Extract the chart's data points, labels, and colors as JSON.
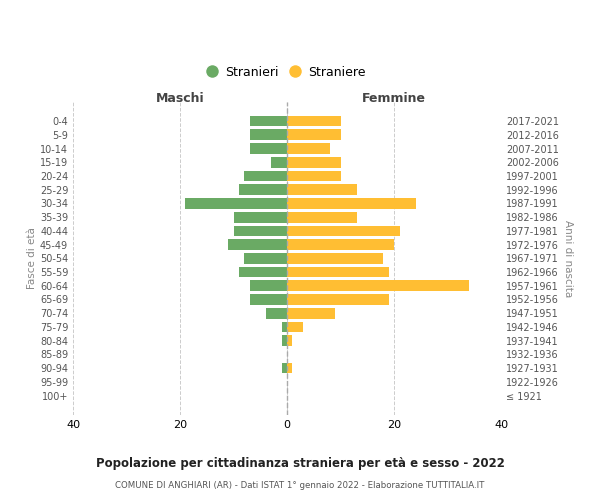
{
  "age_groups": [
    "0-4",
    "5-9",
    "10-14",
    "15-19",
    "20-24",
    "25-29",
    "30-34",
    "35-39",
    "40-44",
    "45-49",
    "50-54",
    "55-59",
    "60-64",
    "65-69",
    "70-74",
    "75-79",
    "80-84",
    "85-89",
    "90-94",
    "95-99",
    "100+"
  ],
  "birth_years": [
    "2017-2021",
    "2012-2016",
    "2007-2011",
    "2002-2006",
    "1997-2001",
    "1992-1996",
    "1987-1991",
    "1982-1986",
    "1977-1981",
    "1972-1976",
    "1967-1971",
    "1962-1966",
    "1957-1961",
    "1952-1956",
    "1947-1951",
    "1942-1946",
    "1937-1941",
    "1932-1936",
    "1927-1931",
    "1922-1926",
    "≤ 1921"
  ],
  "maschi": [
    7,
    7,
    7,
    3,
    8,
    9,
    19,
    10,
    10,
    11,
    8,
    9,
    7,
    7,
    4,
    1,
    1,
    0,
    1,
    0,
    0
  ],
  "femmine": [
    10,
    10,
    8,
    10,
    10,
    13,
    24,
    13,
    21,
    20,
    18,
    19,
    34,
    19,
    9,
    3,
    1,
    0,
    1,
    0,
    0
  ],
  "male_color": "#6aaa64",
  "female_color": "#ffbe33",
  "title": "Popolazione per cittadinanza straniera per età e sesso - 2022",
  "subtitle": "COMUNE DI ANGHIARI (AR) - Dati ISTAT 1° gennaio 2022 - Elaborazione TUTTITALIA.IT",
  "xlabel_left": "Maschi",
  "xlabel_right": "Femmine",
  "ylabel": "Fasce di età",
  "ylabel_right": "Anni di nascita",
  "xlim": 40,
  "legend_stranieri": "Stranieri",
  "legend_straniere": "Straniere",
  "background_color": "#ffffff",
  "grid_color": "#cccccc"
}
